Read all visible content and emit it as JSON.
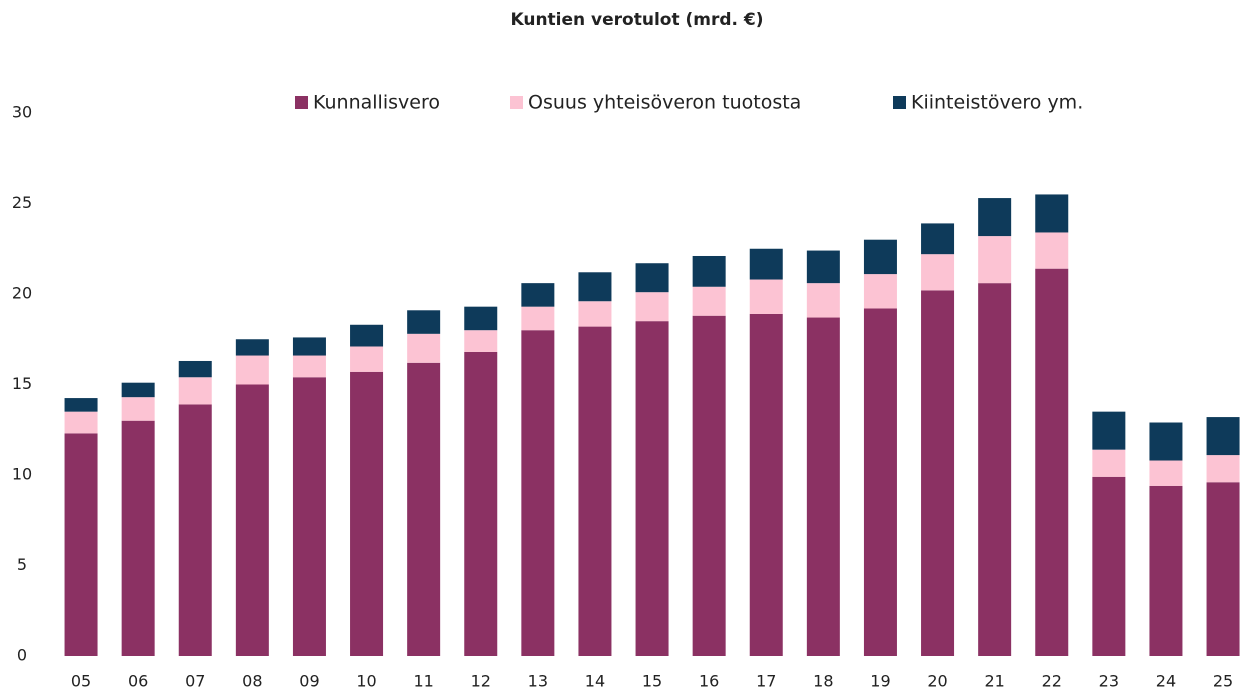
{
  "chart_data": {
    "type": "stacked_bar",
    "title": "Kuntien verotulot (mrd. €)",
    "categories": [
      "05",
      "06",
      "07",
      "08",
      "09",
      "10",
      "11",
      "12",
      "13",
      "14",
      "15",
      "16",
      "17",
      "18",
      "19",
      "20",
      "21",
      "22",
      "23",
      "24",
      "25"
    ],
    "series": [
      {
        "name": "Kunnallisvero",
        "color": "#8b3163",
        "values": [
          12.3,
          13.0,
          13.9,
          15.0,
          15.4,
          15.7,
          16.2,
          16.8,
          18.0,
          18.2,
          18.5,
          18.8,
          18.9,
          18.7,
          19.2,
          20.2,
          20.6,
          21.4,
          9.9,
          9.4,
          9.6
        ]
      },
      {
        "name": "Osuus yhteisöveron tuotosta",
        "color": "#fcc3d3",
        "values": [
          1.2,
          1.3,
          1.5,
          1.6,
          1.2,
          1.4,
          1.6,
          1.2,
          1.3,
          1.4,
          1.6,
          1.6,
          1.9,
          1.9,
          1.9,
          2.0,
          2.6,
          2.0,
          1.5,
          1.4,
          1.5
        ]
      },
      {
        "name": "Kiinteistövero ym.",
        "color": "#0e3a5a",
        "values": [
          0.75,
          0.8,
          0.9,
          0.9,
          1.0,
          1.2,
          1.3,
          1.3,
          1.3,
          1.6,
          1.6,
          1.7,
          1.7,
          1.8,
          1.9,
          1.7,
          2.1,
          2.1,
          2.1,
          2.1,
          2.1
        ]
      }
    ],
    "ylim": [
      0,
      30
    ],
    "yticks": [
      0,
      5,
      10,
      15,
      20,
      25,
      30
    ]
  }
}
